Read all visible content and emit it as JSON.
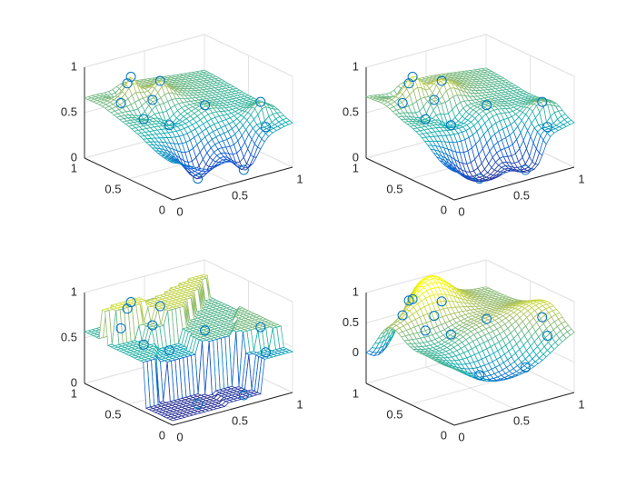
{
  "chart_data": [
    {
      "type": "mesh",
      "interpolation": "linear",
      "x": [
        0.24,
        0.23,
        0.41,
        0.2,
        0.34,
        0.31,
        0.6,
        0.88,
        0.85,
        0.63,
        0.32,
        0.32
      ],
      "y": [
        0.8,
        0.9,
        0.7,
        0.6,
        0.5,
        0.65,
        0.45,
        0.2,
        0.1,
        0.05,
        0.15,
        0.95
      ],
      "z": [
        0.9,
        0.57,
        0.84,
        0.54,
        0.47,
        0.69,
        0.62,
        0.67,
        0.45,
        0.08,
        0.05,
        0.73
      ],
      "xlim": [
        0,
        1
      ],
      "ylim": [
        0,
        1
      ],
      "zlim": [
        0,
        1
      ],
      "xticks": [
        0,
        0.5,
        1
      ],
      "yticks": [
        0,
        0.5,
        1
      ],
      "zticks": [
        0,
        0.5,
        1
      ],
      "grid": true,
      "color": "#0072bd"
    },
    {
      "type": "mesh",
      "interpolation": "natural",
      "x": [
        0.24,
        0.23,
        0.41,
        0.2,
        0.34,
        0.31,
        0.6,
        0.88,
        0.85,
        0.63,
        0.32,
        0.32
      ],
      "y": [
        0.8,
        0.9,
        0.7,
        0.6,
        0.5,
        0.65,
        0.45,
        0.2,
        0.1,
        0.05,
        0.15,
        0.95
      ],
      "z": [
        0.9,
        0.57,
        0.84,
        0.54,
        0.47,
        0.69,
        0.62,
        0.67,
        0.45,
        0.08,
        0.05,
        0.73
      ],
      "xlim": [
        0,
        1
      ],
      "ylim": [
        0,
        1
      ],
      "zlim": [
        0,
        1
      ],
      "xticks": [
        0,
        0.5,
        1
      ],
      "yticks": [
        0,
        0.5,
        1
      ],
      "zticks": [
        0,
        0.5,
        1
      ],
      "grid": true,
      "color": "#0072bd"
    },
    {
      "type": "mesh",
      "interpolation": "nearest",
      "x": [
        0.24,
        0.23,
        0.41,
        0.2,
        0.34,
        0.31,
        0.6,
        0.88,
        0.85,
        0.63,
        0.32,
        0.32
      ],
      "y": [
        0.8,
        0.9,
        0.7,
        0.6,
        0.5,
        0.65,
        0.45,
        0.2,
        0.1,
        0.05,
        0.15,
        0.95
      ],
      "z": [
        0.9,
        0.57,
        0.84,
        0.54,
        0.47,
        0.69,
        0.62,
        0.67,
        0.45,
        0.08,
        0.05,
        0.73
      ],
      "xlim": [
        0,
        1
      ],
      "ylim": [
        0,
        1
      ],
      "zlim": [
        0,
        1
      ],
      "xticks": [
        0,
        0.5,
        1
      ],
      "yticks": [
        0,
        0.5,
        1
      ],
      "zticks": [
        0,
        0.5,
        1
      ],
      "grid": true,
      "color": "#0072bd"
    },
    {
      "type": "mesh",
      "interpolation": "v4",
      "x": [
        0.24,
        0.23,
        0.41,
        0.2,
        0.34,
        0.31,
        0.6,
        0.88,
        0.85,
        0.63,
        0.32,
        0.32
      ],
      "y": [
        0.8,
        0.9,
        0.7,
        0.6,
        0.5,
        0.65,
        0.45,
        0.2,
        0.1,
        0.05,
        0.15,
        0.95
      ],
      "z": [
        0.9,
        0.57,
        0.84,
        0.54,
        0.47,
        0.69,
        0.62,
        0.67,
        0.45,
        0.08,
        0.05,
        0.73
      ],
      "xlim": [
        0,
        1
      ],
      "ylim": [
        0,
        1
      ],
      "zlim": [
        -0.5,
        1
      ],
      "xticks": [
        0,
        0.5,
        1
      ],
      "yticks": [
        0,
        0.5,
        1
      ],
      "zticks": [
        0,
        0.5,
        1
      ],
      "grid": true,
      "color": "#0072bd"
    }
  ]
}
